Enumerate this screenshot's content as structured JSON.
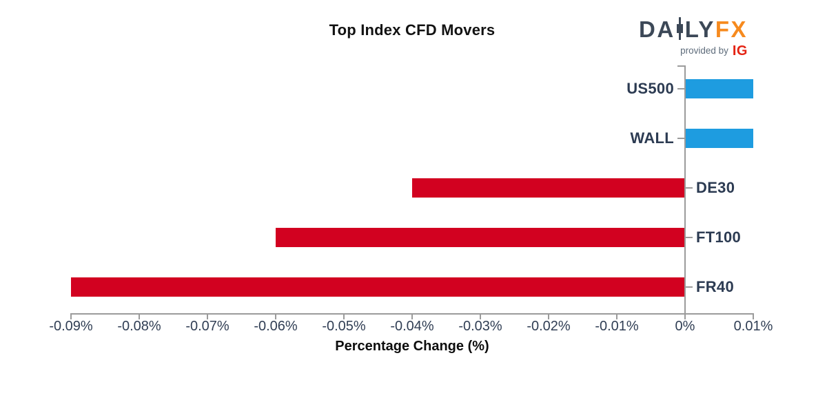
{
  "logo": {
    "da": "DA",
    "ly": "LY",
    "fx": "FX",
    "provided_by": "provided by",
    "ig": "IG",
    "colors": {
      "dark": "#3c4857",
      "orange": "#f68a1e",
      "provided_gray": "#5e6c7b",
      "ig_red": "#e42313"
    }
  },
  "chart_data": {
    "type": "bar",
    "orientation": "horizontal",
    "title": "Top Index CFD Movers",
    "xlabel": "Percentage Change (%)",
    "categories": [
      "US500",
      "WALL",
      "DE30",
      "FT100",
      "FR40"
    ],
    "values": [
      0.01,
      0.01,
      -0.04,
      -0.06,
      -0.09
    ],
    "value_unit": "%",
    "xlim": [
      -0.09,
      0.01
    ],
    "x_tick_values": [
      -0.09,
      -0.08,
      -0.07,
      -0.06,
      -0.05,
      -0.04,
      -0.03,
      -0.02,
      -0.01,
      0,
      0.01
    ],
    "x_tick_labels": [
      "-0.09%",
      "-0.08%",
      "-0.07%",
      "-0.06%",
      "-0.05%",
      "-0.04%",
      "-0.03%",
      "-0.02%",
      "-0.01%",
      "0%",
      "0.01%"
    ],
    "grid": false,
    "legend": null,
    "colors": {
      "positive_bar": "#1e9ce0",
      "negative_bar": "#d20120",
      "axis": "#9b9b9b",
      "tick_label": "#303e54",
      "category_label": "#2c3b52",
      "title": "#121212"
    }
  }
}
